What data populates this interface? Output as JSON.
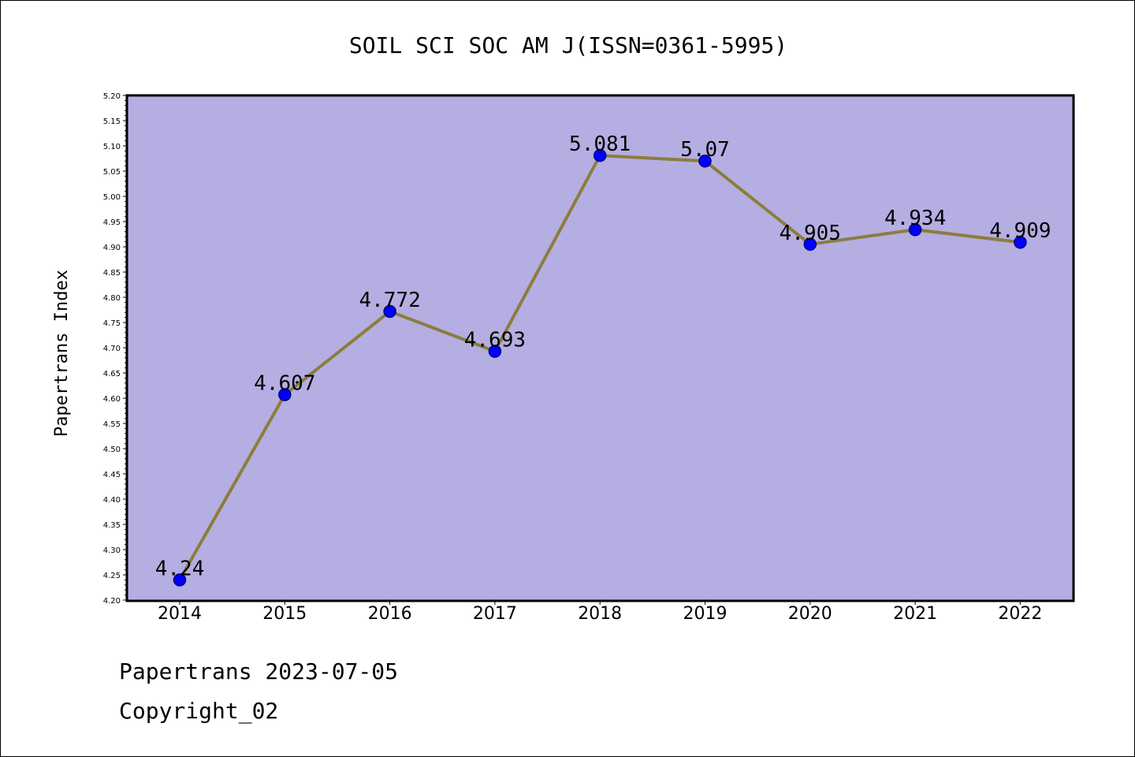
{
  "chart_data": {
    "type": "line",
    "title": "SOIL SCI SOC AM J(ISSN=0361-5995)",
    "xlabel": "",
    "ylabel": "Papertrans Index",
    "categories": [
      "2014",
      "2015",
      "2016",
      "2017",
      "2018",
      "2019",
      "2020",
      "2021",
      "2022"
    ],
    "values": [
      4.24,
      4.607,
      4.772,
      4.693,
      5.081,
      5.07,
      4.905,
      4.934,
      4.909
    ],
    "data_labels": [
      "4.24",
      "4.607",
      "4.772",
      "4.693",
      "5.081",
      "5.07",
      "4.905",
      "4.934",
      "4.909"
    ],
    "ylim": [
      4.2,
      5.2
    ],
    "y_ticks": [
      "4.20",
      "4.25",
      "4.30",
      "4.35",
      "4.40",
      "4.45",
      "4.50",
      "4.55",
      "4.60",
      "4.65",
      "4.70",
      "4.75",
      "4.80",
      "4.85",
      "4.90",
      "4.95",
      "5.00",
      "5.05",
      "5.10",
      "5.15",
      "5.20"
    ],
    "grid": false,
    "colors": {
      "plot_background": "#b4aee2",
      "line": "#8b7d3c",
      "marker": "#0000ff",
      "marker_edge": "#000080"
    }
  },
  "footer": {
    "line1": "Papertrans 2023-07-05",
    "line2": "Copyright_02"
  }
}
